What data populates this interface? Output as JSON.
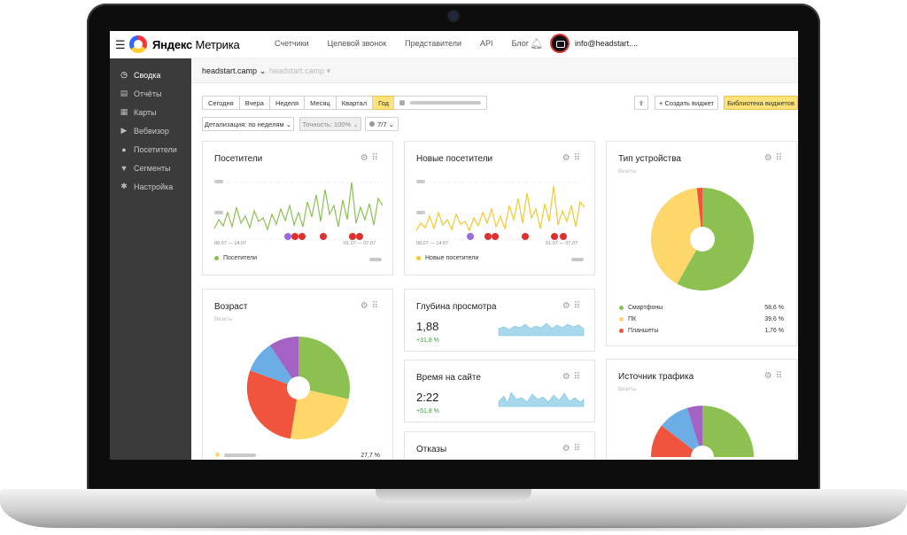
{
  "app": {
    "brand_bold": "Яндекс",
    "brand_light": "Метрика",
    "nav": [
      "Счетчики",
      "Целевой звонок",
      "Представители",
      "API",
      "Блог"
    ],
    "user": "info@headstart....",
    "menu_icon": "hamburger-menu-icon",
    "bell_icon": "bell-icon"
  },
  "sidebar": {
    "items": [
      {
        "label": "Сводка",
        "icon": "gauge-icon",
        "glyph": "◷",
        "active": true
      },
      {
        "label": "Отчёты",
        "icon": "report-icon",
        "glyph": "▤",
        "active": false
      },
      {
        "label": "Карты",
        "icon": "map-icon",
        "glyph": "▦",
        "active": false
      },
      {
        "label": "Вебвизор",
        "icon": "play-icon",
        "glyph": "▶",
        "active": false
      },
      {
        "label": "Посетители",
        "icon": "person-icon",
        "glyph": "●",
        "active": false
      },
      {
        "label": "Сегменты",
        "icon": "funnel-icon",
        "glyph": "▼",
        "active": false
      },
      {
        "label": "Настройка",
        "icon": "gear-icon",
        "glyph": "✱",
        "active": false
      }
    ]
  },
  "breadcrumbs": {
    "current": "headstart.camp",
    "secondary": "headstart.camp"
  },
  "toolbar": {
    "periods": [
      "Сегодня",
      "Вчера",
      "Неделя",
      "Месяц",
      "Квартал",
      "Год"
    ],
    "active_period": "Год",
    "create_widget": "+ Создать виджет",
    "library": "Библиотека виджетов",
    "detail": "Детализация: по неделям",
    "accuracy": "Точность: 100%",
    "filters": "7/7"
  },
  "cards": {
    "visitors": {
      "title": "Посетители",
      "legend": "Посетители",
      "date1": "08.07 — 14.07",
      "date2": "01.07 — 07.07"
    },
    "new_visitors": {
      "title": "Новые посетители",
      "legend": "Новые посетители",
      "date1": "08.07 — 14.07",
      "date2": "01.07 — 07.07"
    },
    "device": {
      "title": "Тип устройства",
      "sub": "Визиты",
      "items": [
        {
          "label": "Смартфоны",
          "value": "58,6 %",
          "color": "#8cc152"
        },
        {
          "label": "ПК",
          "value": "39,6 %",
          "color": "#fdd76a"
        },
        {
          "label": "Планшеты",
          "value": "1,76 %",
          "color": "#f0543c"
        }
      ]
    },
    "age": {
      "title": "Возраст",
      "sub": "Визиты",
      "bottom_value": "27,7 %"
    },
    "depth": {
      "title": "Глубина просмотра",
      "value": "1,88",
      "delta": "+31,8 %"
    },
    "time": {
      "title": "Время на сайте",
      "value": "2:22",
      "delta": "+51,8 %"
    },
    "bounce": {
      "title": "Отказы"
    },
    "traffic": {
      "title": "Источник трафика",
      "sub": "Визиты"
    }
  },
  "colors": {
    "accent": "#fde37a",
    "green": "#8cc152",
    "yellow": "#fdd76a",
    "red": "#f0543c",
    "blue": "#6aaee5",
    "purple": "#a463c3",
    "spark": "#a8d8ec"
  }
}
